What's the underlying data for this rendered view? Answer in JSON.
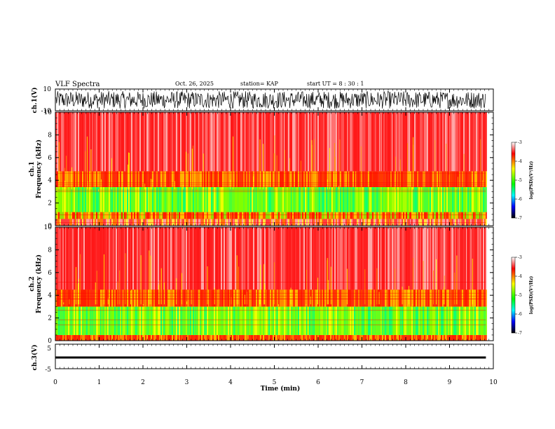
{
  "header": {
    "title": "VLF Spectra",
    "date": "Oct. 26, 2025",
    "station": "station= KAP",
    "start": "start  UT =   8  : 30 : 1"
  },
  "colors": {
    "background": "#ffffff",
    "frame": "#000000"
  },
  "chart_data": [
    {
      "type": "line",
      "id": "ch1-waveform",
      "ylabel": "ch.1(V)",
      "ylim": [
        -10,
        10
      ],
      "yticks": [
        10,
        -10
      ],
      "xlim": [
        0,
        10
      ],
      "data_extent_min": 9.83,
      "amplitude_band": [
        -8,
        8
      ]
    },
    {
      "type": "heatmap",
      "id": "ch1-spectrogram",
      "ylabel_top": "ch.1",
      "ylabel": "Frequency  (kHz)",
      "ylim": [
        0,
        10
      ],
      "yticks": [
        0,
        2,
        4,
        6,
        8,
        10
      ],
      "xlim": [
        0,
        10
      ],
      "data_extent_min": 9.83,
      "bands_khz": [
        {
          "from": 0,
          "to": 0.6,
          "level": "mixed"
        },
        {
          "from": 0.6,
          "to": 1.2,
          "level": "low"
        },
        {
          "from": 1.2,
          "to": 3.4,
          "level": "green"
        },
        {
          "from": 3.4,
          "to": 4.8,
          "level": "orange"
        },
        {
          "from": 4.8,
          "to": 10,
          "level": "high"
        }
      ],
      "colorbar": {
        "label": "log(PSD)(V²/Hz)",
        "ticks": [
          "-3",
          "-4",
          "-5",
          "-6",
          "-7"
        ],
        "range": [
          -7,
          -3
        ],
        "stops": [
          "#ffffff",
          "#ff0000",
          "#ffff00",
          "#00ff00",
          "#00ffff",
          "#0000ff",
          "#000000"
        ]
      }
    },
    {
      "type": "heatmap",
      "id": "ch2-spectrogram",
      "ylabel_top": "ch.2",
      "ylabel": "Frequency  (kHz)",
      "ylim": [
        0,
        10
      ],
      "yticks": [
        0,
        2,
        4,
        6,
        8,
        10
      ],
      "xlim": [
        0,
        10
      ],
      "data_extent_min": 9.83,
      "bands_khz": [
        {
          "from": 0,
          "to": 0.5,
          "level": "orange"
        },
        {
          "from": 0.5,
          "to": 3.0,
          "level": "green"
        },
        {
          "from": 3.0,
          "to": 4.5,
          "level": "orange"
        },
        {
          "from": 4.5,
          "to": 10,
          "level": "high"
        }
      ],
      "colorbar": {
        "label": "log(PSD)(V²/Hz)",
        "ticks": [
          "-3",
          "-4",
          "-5",
          "-6",
          "-7"
        ],
        "range": [
          -7,
          -3
        ],
        "stops": [
          "#ffffff",
          "#ff0000",
          "#ffff00",
          "#00ff00",
          "#00ffff",
          "#0000ff",
          "#000000"
        ]
      }
    },
    {
      "type": "line",
      "id": "ch3-waveform",
      "ylabel": "ch.3(V)",
      "ylim": [
        -5,
        5
      ],
      "yticks": [
        5,
        -5
      ],
      "xlim": [
        0,
        10
      ],
      "data_extent_min": 9.83,
      "level": -0.3,
      "amplitude_band": [
        -0.5,
        0
      ]
    }
  ],
  "xaxis": {
    "label": "Time  (min)",
    "ticks": [
      "0",
      "1",
      "2",
      "3",
      "4",
      "5",
      "6",
      "7",
      "8",
      "9",
      "10"
    ]
  }
}
